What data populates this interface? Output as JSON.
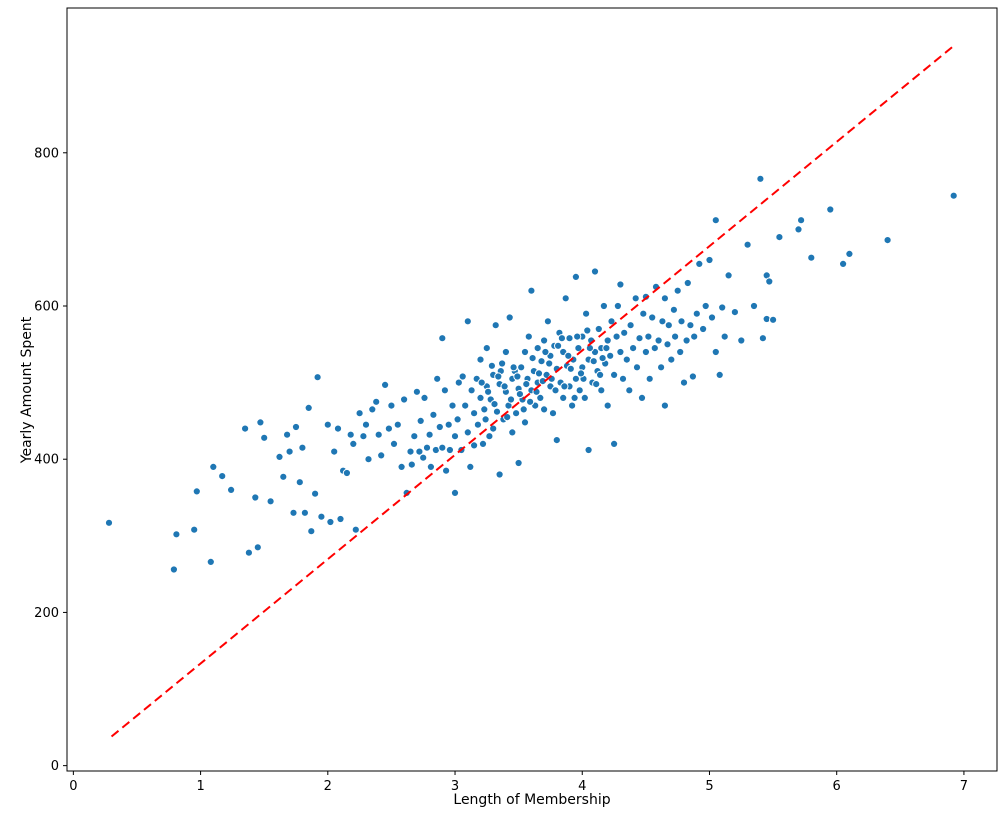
{
  "chart_data": {
    "type": "scatter",
    "title": "",
    "xlabel": "Length of Membership",
    "ylabel": "Yearly Amount Spent",
    "xlim": [
      -0.05,
      7.26
    ],
    "ylim": [
      -7,
      989
    ],
    "xticks": [
      0,
      1,
      2,
      3,
      4,
      5,
      6,
      7
    ],
    "yticks": [
      0,
      200,
      400,
      600,
      800
    ],
    "grid": false,
    "legend": "none",
    "marker_color": "#1f77b4",
    "marker_edge_color": "#ffffff",
    "background_color": "#ffffff",
    "spine_color": "#000000",
    "trend_line": {
      "color": "#ff0000",
      "style": "dashed",
      "width": 2,
      "x": [
        0.3,
        6.93
      ],
      "y": [
        38,
        941
      ]
    },
    "points": [
      [
        0.28,
        317
      ],
      [
        0.79,
        256
      ],
      [
        0.81,
        302
      ],
      [
        0.95,
        308
      ],
      [
        0.97,
        358
      ],
      [
        1.08,
        266
      ],
      [
        1.1,
        390
      ],
      [
        1.17,
        378
      ],
      [
        1.24,
        360
      ],
      [
        1.35,
        440
      ],
      [
        1.38,
        278
      ],
      [
        1.43,
        350
      ],
      [
        1.45,
        285
      ],
      [
        1.47,
        448
      ],
      [
        1.5,
        428
      ],
      [
        1.55,
        345
      ],
      [
        1.62,
        403
      ],
      [
        1.65,
        377
      ],
      [
        1.68,
        432
      ],
      [
        1.7,
        410
      ],
      [
        1.73,
        330
      ],
      [
        1.75,
        442
      ],
      [
        1.78,
        370
      ],
      [
        1.8,
        415
      ],
      [
        1.82,
        330
      ],
      [
        1.85,
        467
      ],
      [
        1.87,
        306
      ],
      [
        1.9,
        355
      ],
      [
        1.92,
        507
      ],
      [
        1.95,
        325
      ],
      [
        2.0,
        445
      ],
      [
        2.02,
        318
      ],
      [
        2.05,
        410
      ],
      [
        2.08,
        440
      ],
      [
        2.1,
        322
      ],
      [
        2.12,
        385
      ],
      [
        2.15,
        382
      ],
      [
        2.18,
        432
      ],
      [
        2.2,
        420
      ],
      [
        2.22,
        308
      ],
      [
        2.25,
        460
      ],
      [
        2.28,
        430
      ],
      [
        2.3,
        445
      ],
      [
        2.32,
        400
      ],
      [
        2.35,
        465
      ],
      [
        2.38,
        475
      ],
      [
        2.4,
        432
      ],
      [
        2.42,
        405
      ],
      [
        2.45,
        497
      ],
      [
        2.48,
        440
      ],
      [
        2.5,
        470
      ],
      [
        2.52,
        420
      ],
      [
        2.55,
        445
      ],
      [
        2.58,
        390
      ],
      [
        2.6,
        478
      ],
      [
        2.62,
        356
      ],
      [
        2.65,
        410
      ],
      [
        2.66,
        393
      ],
      [
        2.68,
        430
      ],
      [
        2.7,
        488
      ],
      [
        2.72,
        410
      ],
      [
        2.73,
        450
      ],
      [
        2.75,
        402
      ],
      [
        2.76,
        480
      ],
      [
        2.78,
        415
      ],
      [
        2.8,
        432
      ],
      [
        2.81,
        390
      ],
      [
        2.83,
        458
      ],
      [
        2.85,
        412
      ],
      [
        2.86,
        505
      ],
      [
        2.88,
        442
      ],
      [
        2.9,
        558
      ],
      [
        2.9,
        415
      ],
      [
        2.92,
        490
      ],
      [
        2.93,
        385
      ],
      [
        2.95,
        445
      ],
      [
        2.96,
        412
      ],
      [
        2.98,
        470
      ],
      [
        3.0,
        356
      ],
      [
        3.0,
        430
      ],
      [
        3.02,
        452
      ],
      [
        3.03,
        500
      ],
      [
        3.05,
        412
      ],
      [
        3.06,
        508
      ],
      [
        3.08,
        470
      ],
      [
        3.1,
        435
      ],
      [
        3.1,
        580
      ],
      [
        3.12,
        390
      ],
      [
        3.13,
        490
      ],
      [
        3.15,
        460
      ],
      [
        3.15,
        418
      ],
      [
        3.17,
        505
      ],
      [
        3.18,
        445
      ],
      [
        3.2,
        480
      ],
      [
        3.2,
        530
      ],
      [
        3.22,
        420
      ],
      [
        3.23,
        465
      ],
      [
        3.25,
        495
      ],
      [
        3.25,
        545
      ],
      [
        3.27,
        430
      ],
      [
        3.28,
        478
      ],
      [
        3.3,
        510
      ],
      [
        3.3,
        440
      ],
      [
        3.32,
        575
      ],
      [
        3.33,
        462
      ],
      [
        3.35,
        498
      ],
      [
        3.35,
        380
      ],
      [
        3.37,
        525
      ],
      [
        3.38,
        452
      ],
      [
        3.4,
        488
      ],
      [
        3.4,
        540
      ],
      [
        3.42,
        470
      ],
      [
        3.43,
        585
      ],
      [
        3.45,
        505
      ],
      [
        3.45,
        435
      ],
      [
        3.47,
        515
      ],
      [
        3.48,
        460
      ],
      [
        3.5,
        492
      ],
      [
        3.5,
        395
      ],
      [
        3.52,
        520
      ],
      [
        3.53,
        478
      ],
      [
        3.55,
        540
      ],
      [
        3.55,
        448
      ],
      [
        3.57,
        505
      ],
      [
        3.58,
        560
      ],
      [
        3.6,
        490
      ],
      [
        3.6,
        620
      ],
      [
        3.62,
        515
      ],
      [
        3.63,
        470
      ],
      [
        3.65,
        545
      ],
      [
        3.65,
        500
      ],
      [
        3.67,
        480
      ],
      [
        3.68,
        528
      ],
      [
        3.7,
        555
      ],
      [
        3.7,
        465
      ],
      [
        3.72,
        510
      ],
      [
        3.73,
        580
      ],
      [
        3.75,
        495
      ],
      [
        3.75,
        535
      ],
      [
        3.77,
        460
      ],
      [
        3.78,
        548
      ],
      [
        3.8,
        518
      ],
      [
        3.8,
        425
      ],
      [
        3.82,
        565
      ],
      [
        3.83,
        500
      ],
      [
        3.85,
        540
      ],
      [
        3.85,
        480
      ],
      [
        3.87,
        610
      ],
      [
        3.88,
        522
      ],
      [
        3.9,
        495
      ],
      [
        3.9,
        558
      ],
      [
        3.92,
        470
      ],
      [
        3.93,
        530
      ],
      [
        3.95,
        505
      ],
      [
        3.95,
        638
      ],
      [
        3.97,
        545
      ],
      [
        3.98,
        490
      ],
      [
        4.0,
        520
      ],
      [
        4.0,
        560
      ],
      [
        4.02,
        480
      ],
      [
        4.03,
        590
      ],
      [
        4.05,
        530
      ],
      [
        4.05,
        412
      ],
      [
        4.07,
        555
      ],
      [
        4.08,
        500
      ],
      [
        4.1,
        540
      ],
      [
        4.1,
        645
      ],
      [
        4.12,
        515
      ],
      [
        4.13,
        570
      ],
      [
        4.15,
        490
      ],
      [
        4.15,
        545
      ],
      [
        4.17,
        600
      ],
      [
        4.18,
        525
      ],
      [
        4.2,
        555
      ],
      [
        4.2,
        470
      ],
      [
        4.22,
        535
      ],
      [
        4.23,
        580
      ],
      [
        4.25,
        510
      ],
      [
        4.25,
        420
      ],
      [
        4.27,
        560
      ],
      [
        4.28,
        600
      ],
      [
        4.3,
        540
      ],
      [
        4.3,
        628
      ],
      [
        4.32,
        505
      ],
      [
        4.33,
        565
      ],
      [
        4.35,
        530
      ],
      [
        4.37,
        490
      ],
      [
        4.38,
        575
      ],
      [
        4.4,
        545
      ],
      [
        4.42,
        610
      ],
      [
        4.43,
        520
      ],
      [
        4.45,
        558
      ],
      [
        4.47,
        480
      ],
      [
        4.48,
        590
      ],
      [
        4.5,
        540
      ],
      [
        4.5,
        612
      ],
      [
        4.52,
        560
      ],
      [
        4.53,
        505
      ],
      [
        4.55,
        585
      ],
      [
        4.57,
        545
      ],
      [
        4.58,
        625
      ],
      [
        4.6,
        555
      ],
      [
        4.62,
        520
      ],
      [
        4.63,
        580
      ],
      [
        4.65,
        610
      ],
      [
        4.65,
        470
      ],
      [
        4.67,
        550
      ],
      [
        4.68,
        575
      ],
      [
        4.7,
        530
      ],
      [
        4.72,
        595
      ],
      [
        4.73,
        560
      ],
      [
        4.75,
        620
      ],
      [
        4.77,
        540
      ],
      [
        4.78,
        580
      ],
      [
        4.8,
        500
      ],
      [
        4.82,
        555
      ],
      [
        4.83,
        630
      ],
      [
        4.85,
        575
      ],
      [
        4.87,
        508
      ],
      [
        4.88,
        560
      ],
      [
        4.9,
        590
      ],
      [
        4.92,
        655
      ],
      [
        4.95,
        570
      ],
      [
        4.97,
        600
      ],
      [
        5.0,
        660
      ],
      [
        5.02,
        585
      ],
      [
        5.05,
        712
      ],
      [
        5.05,
        540
      ],
      [
        5.08,
        510
      ],
      [
        5.1,
        598
      ],
      [
        5.12,
        560
      ],
      [
        5.15,
        640
      ],
      [
        5.2,
        592
      ],
      [
        5.25,
        555
      ],
      [
        5.3,
        680
      ],
      [
        5.35,
        600
      ],
      [
        5.4,
        766
      ],
      [
        5.42,
        558
      ],
      [
        5.45,
        640
      ],
      [
        5.45,
        583
      ],
      [
        5.47,
        632
      ],
      [
        5.5,
        582
      ],
      [
        5.55,
        690
      ],
      [
        5.7,
        700
      ],
      [
        5.72,
        712
      ],
      [
        5.8,
        663
      ],
      [
        5.95,
        726
      ],
      [
        6.05,
        655
      ],
      [
        6.1,
        668
      ],
      [
        6.4,
        686
      ],
      [
        6.92,
        744
      ],
      [
        3.21,
        500
      ],
      [
        3.26,
        488
      ],
      [
        3.31,
        472
      ],
      [
        3.36,
        515
      ],
      [
        3.41,
        455
      ],
      [
        3.46,
        520
      ],
      [
        3.51,
        485
      ],
      [
        3.56,
        498
      ],
      [
        3.61,
        532
      ],
      [
        3.66,
        512
      ],
      [
        3.71,
        540
      ],
      [
        3.76,
        505
      ],
      [
        3.81,
        548
      ],
      [
        3.86,
        495
      ],
      [
        3.91,
        518
      ],
      [
        3.96,
        560
      ],
      [
        4.01,
        505
      ],
      [
        4.06,
        545
      ],
      [
        4.11,
        498
      ],
      [
        4.16,
        532
      ],
      [
        3.24,
        452
      ],
      [
        3.34,
        508
      ],
      [
        3.44,
        478
      ],
      [
        3.54,
        465
      ],
      [
        3.64,
        488
      ],
      [
        3.74,
        525
      ],
      [
        3.84,
        558
      ],
      [
        3.94,
        480
      ],
      [
        4.04,
        568
      ],
      [
        4.14,
        510
      ],
      [
        3.29,
        522
      ],
      [
        3.39,
        495
      ],
      [
        3.49,
        508
      ],
      [
        3.59,
        475
      ],
      [
        3.69,
        502
      ],
      [
        3.79,
        490
      ],
      [
        3.89,
        535
      ],
      [
        3.99,
        512
      ],
      [
        4.09,
        528
      ],
      [
        4.19,
        545
      ]
    ]
  }
}
